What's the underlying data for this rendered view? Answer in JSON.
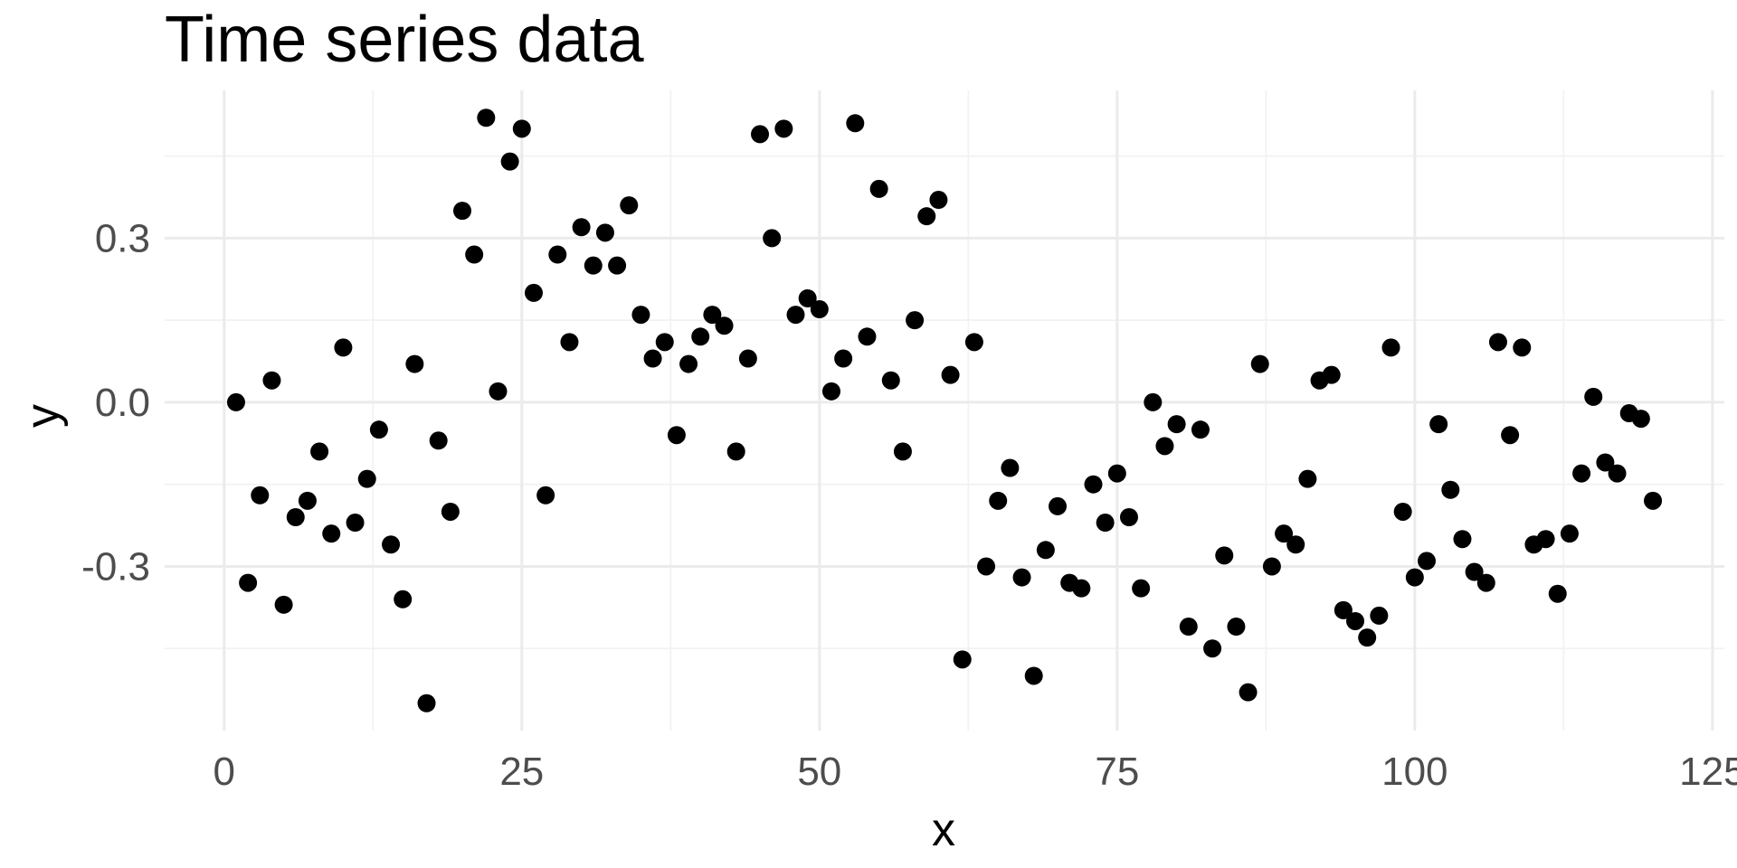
{
  "chart_data": {
    "type": "scatter",
    "title": "Time series data",
    "xlabel": "x",
    "ylabel": "y",
    "xlim": [
      -5,
      126
    ],
    "ylim": [
      -0.6,
      0.57
    ],
    "x_ticks": [
      0,
      25,
      50,
      75,
      100,
      125
    ],
    "x_tick_labels": [
      "0",
      "25",
      "50",
      "75",
      "100",
      "125"
    ],
    "y_ticks": [
      -0.3,
      0.0,
      0.3
    ],
    "y_tick_labels": [
      "-0.3",
      "0.0",
      "0.3"
    ],
    "grid": true,
    "legend": "none",
    "point_color": "#000000",
    "series": [
      {
        "x": [
          1,
          2,
          3,
          4,
          5,
          6,
          7,
          8,
          9,
          10,
          11,
          12,
          13,
          14,
          15,
          16,
          17,
          18,
          19,
          20,
          21,
          22,
          23,
          24,
          25,
          26,
          27,
          28,
          29,
          30,
          31,
          32,
          33,
          34,
          35,
          36,
          37,
          38,
          39,
          40,
          41,
          42,
          43,
          44,
          45,
          46,
          47,
          48,
          49,
          50,
          51,
          52,
          53,
          54,
          55,
          56,
          57,
          58,
          59,
          60,
          61,
          62,
          63,
          64,
          65,
          66,
          67,
          68,
          69,
          70,
          71,
          72,
          73,
          74,
          75,
          76,
          77,
          78,
          79,
          80,
          81,
          82,
          83,
          84,
          85,
          86,
          87,
          88,
          89,
          90,
          91,
          92,
          93,
          94,
          95,
          96,
          97,
          98,
          99,
          100,
          101,
          102,
          103,
          104,
          105,
          106,
          107,
          108,
          109,
          110,
          111,
          112,
          113,
          114,
          115,
          116,
          117,
          118,
          119,
          120
        ],
        "y": [
          0.0,
          -0.33,
          -0.17,
          0.04,
          -0.37,
          -0.21,
          -0.18,
          -0.09,
          -0.24,
          0.1,
          -0.22,
          -0.14,
          -0.05,
          -0.26,
          -0.36,
          0.07,
          -0.55,
          -0.07,
          -0.2,
          0.35,
          0.27,
          0.52,
          0.02,
          0.44,
          0.5,
          0.2,
          -0.17,
          0.27,
          0.11,
          0.32,
          0.25,
          0.31,
          0.25,
          0.36,
          0.16,
          0.08,
          0.11,
          -0.06,
          0.07,
          0.12,
          0.16,
          0.14,
          -0.09,
          0.08,
          0.49,
          0.3,
          0.5,
          0.16,
          0.19,
          0.17,
          0.02,
          0.08,
          0.51,
          0.12,
          0.39,
          0.04,
          -0.09,
          0.15,
          0.34,
          0.37,
          0.05,
          -0.47,
          0.11,
          -0.3,
          -0.18,
          -0.12,
          -0.32,
          -0.5,
          -0.27,
          -0.19,
          -0.33,
          -0.34,
          -0.15,
          -0.22,
          -0.13,
          -0.21,
          -0.34,
          -0.0,
          -0.08,
          -0.04,
          -0.41,
          -0.05,
          -0.45,
          -0.28,
          -0.41,
          -0.53,
          0.07,
          -0.3,
          -0.24,
          -0.26,
          -0.14,
          0.04,
          0.05,
          -0.38,
          -0.4,
          -0.43,
          -0.39,
          0.1,
          -0.2,
          -0.32,
          -0.29,
          -0.04,
          -0.16,
          -0.25,
          -0.31,
          -0.33,
          0.11,
          -0.06,
          0.1,
          -0.26,
          -0.25,
          -0.35,
          -0.24,
          -0.13,
          0.01,
          -0.11,
          -0.13,
          -0.02,
          -0.03,
          -0.18
        ]
      }
    ]
  }
}
